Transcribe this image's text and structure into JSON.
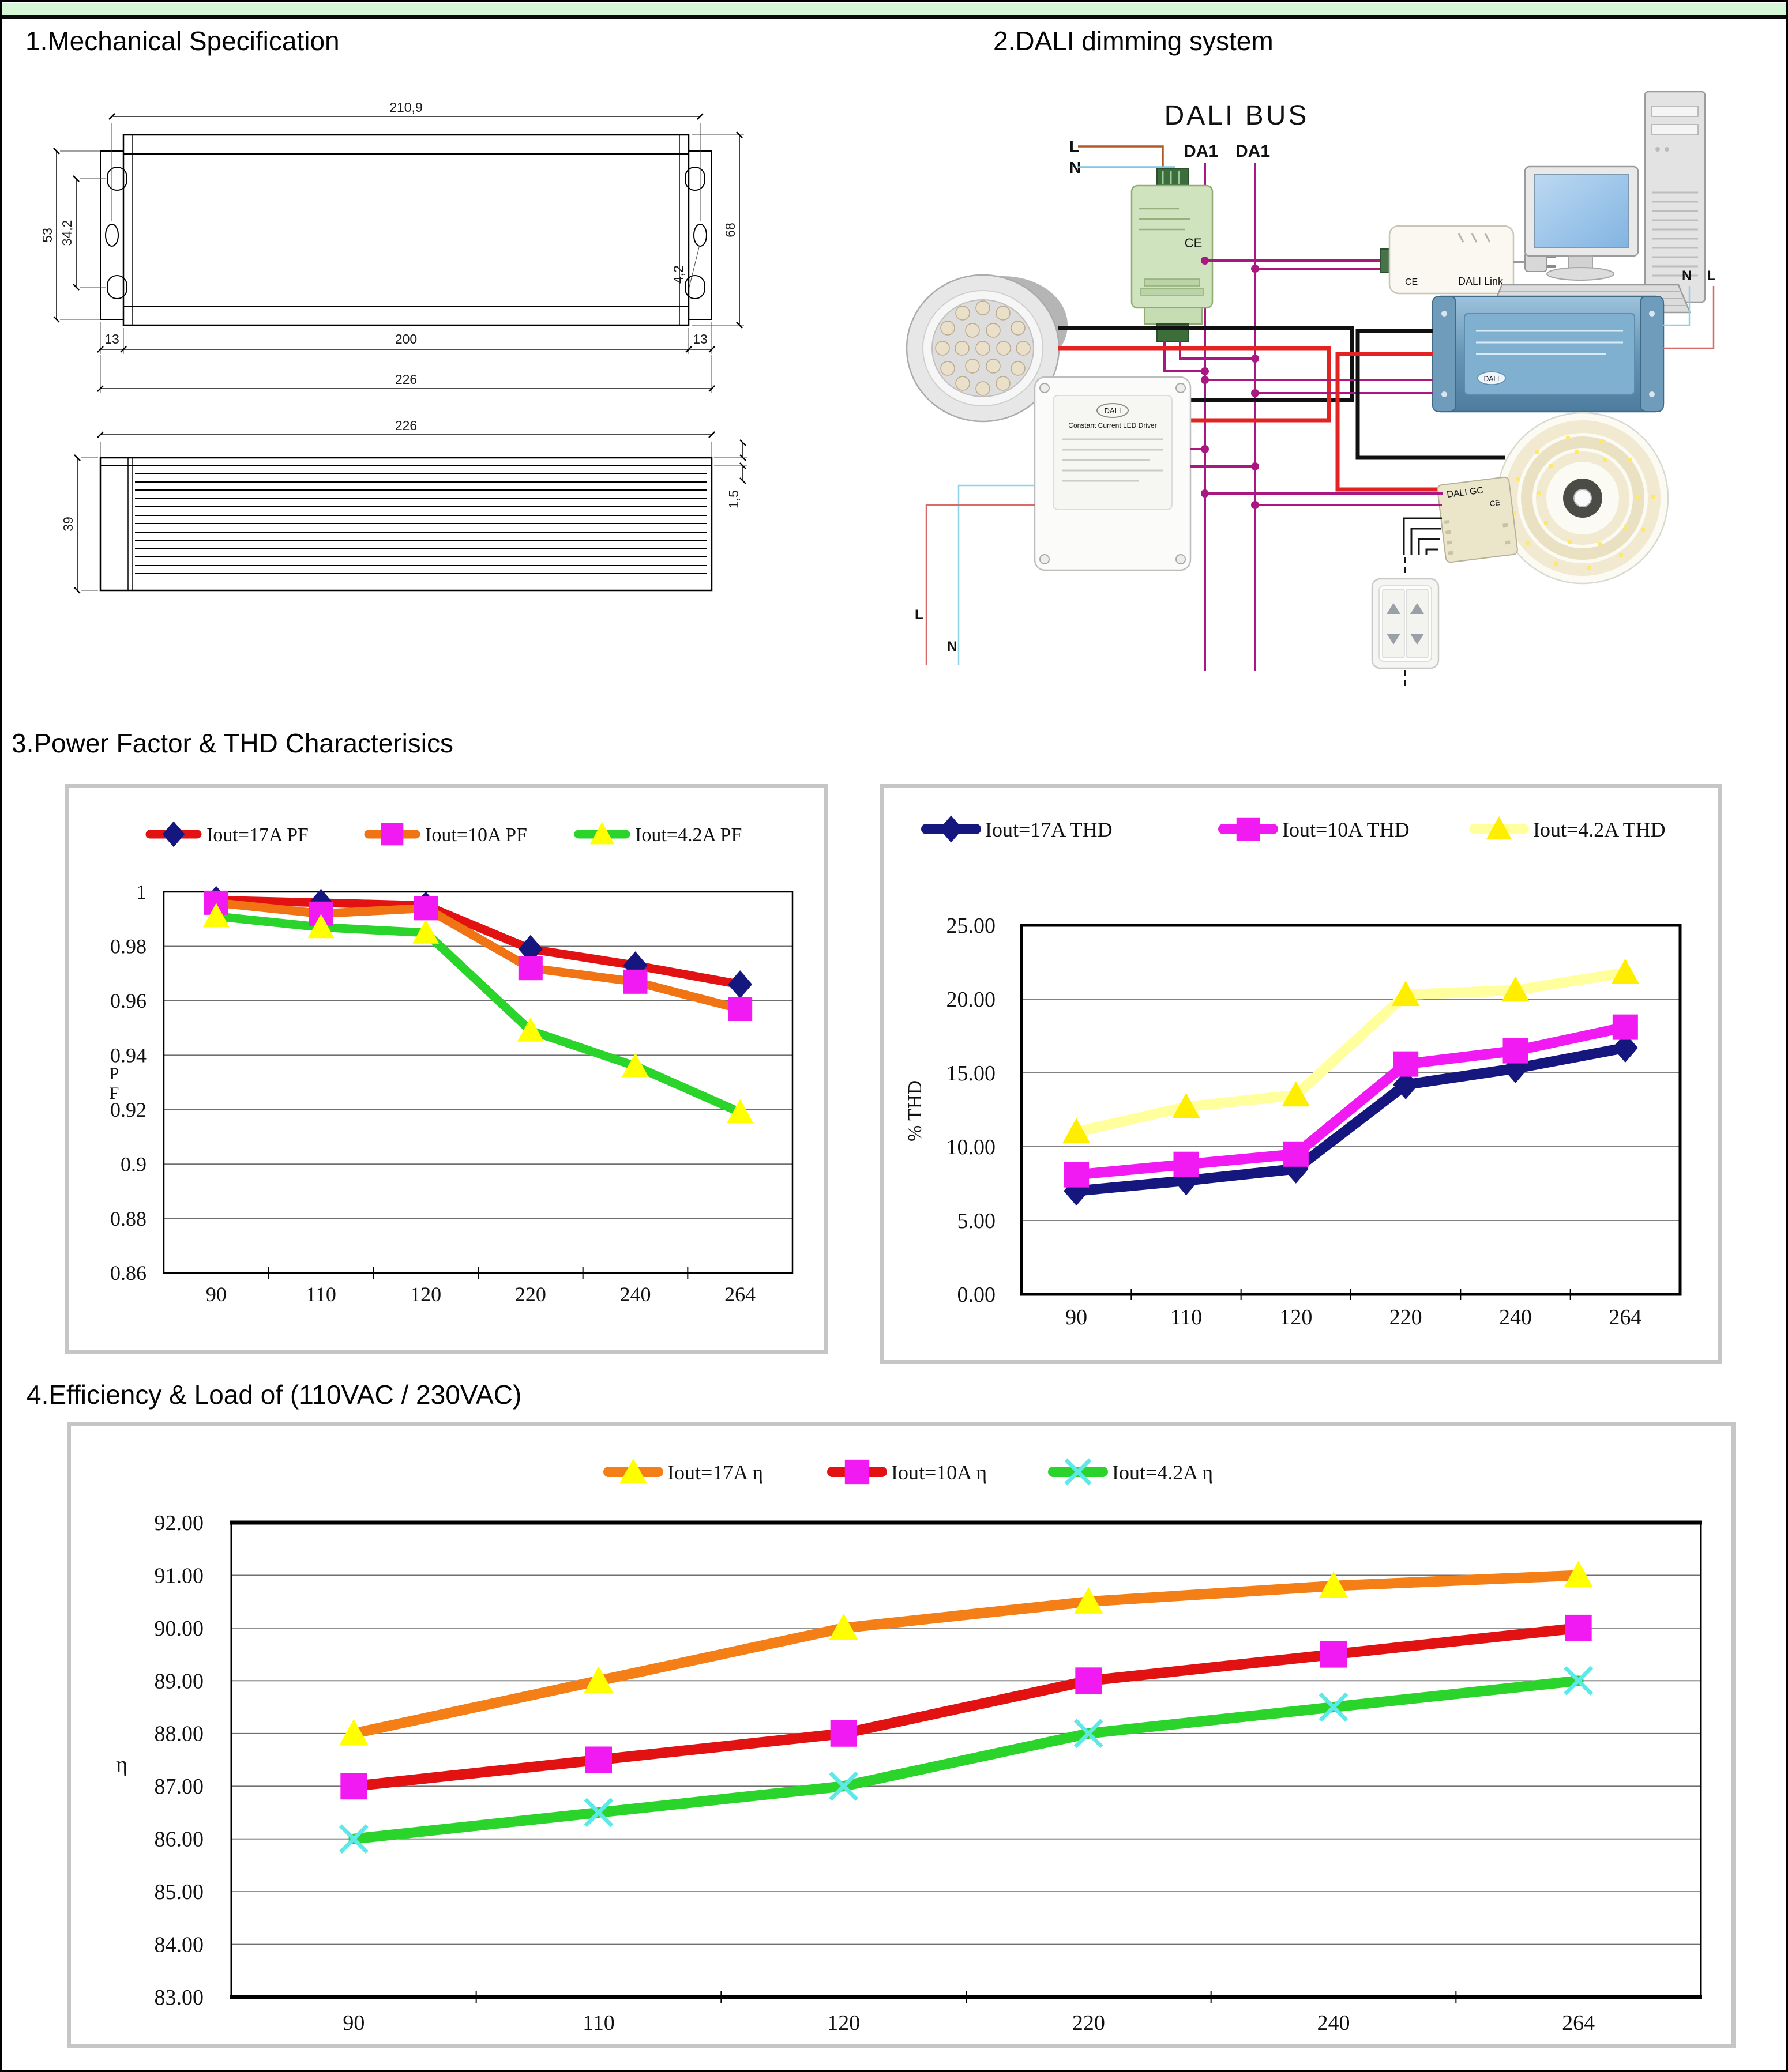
{
  "page": {
    "sections": {
      "s1": "1.Mechanical Specification",
      "s2": "2.DALI dimming system",
      "s3": "3.Power Factor & THD Characterisics",
      "s4": "4.Efficiency & Load of (110VAC / 230VAC)"
    }
  },
  "mechanical": {
    "top_view": {
      "dim_mount_width": "210,9",
      "dim_body_width": "200",
      "dim_flange_left": "13",
      "dim_flange_right": "13",
      "dim_total_width": "226",
      "dim_bracket_height": "53",
      "dim_slot_spacing": "34,2",
      "dim_body_height": "68",
      "dim_hole_dia": "4,2"
    },
    "side_view": {
      "dim_total_width": "226",
      "dim_height": "39",
      "dim_lip": "1,5"
    }
  },
  "dali_diagram": {
    "bus_label": "DALI BUS",
    "da1_left": "DA1",
    "da1_right": "DA1",
    "mains_l": "L",
    "mains_n": "N",
    "right_n": "N",
    "right_l": "L",
    "left_l": "L",
    "left_n": "N",
    "psu_ce": "CE",
    "link_ce": "CE",
    "link_label": "DALI Link",
    "white_driver_logo": "DALI",
    "white_driver_title": "Constant Current LED Driver",
    "blue_driver_logo": "DALI",
    "gc_label": "DALI GC",
    "gc_ce": "CE"
  },
  "chart_data": [
    {
      "id": "pf",
      "type": "line",
      "title": "",
      "categories": [
        "90",
        "110",
        "120",
        "220",
        "240",
        "264"
      ],
      "xlabel": "",
      "ylabel": "PF",
      "ylim": [
        0.86,
        1.0
      ],
      "grid": true,
      "legend_position": "top",
      "ytick_labels": [
        "0.86",
        "0.88",
        "0.9",
        "0.92",
        "0.94",
        "0.96",
        "0.98",
        "1"
      ],
      "series": [
        {
          "name": "Iout=17A PF",
          "line_color": "#e31212",
          "marker": "diamond",
          "marker_color": "#16167f",
          "values": [
            0.997,
            0.996,
            0.995,
            0.979,
            0.973,
            0.966
          ]
        },
        {
          "name": "Iout=10A PF",
          "line_color": "#f07414",
          "marker": "square",
          "marker_color": "#f21af2",
          "values": [
            0.996,
            0.992,
            0.994,
            0.972,
            0.967,
            0.957
          ]
        },
        {
          "name": "Iout=4.2A PF",
          "line_color": "#2bd42b",
          "marker": "triangle",
          "marker_color": "#ffff00",
          "values": [
            0.991,
            0.987,
            0.985,
            0.949,
            0.936,
            0.919
          ]
        }
      ]
    },
    {
      "id": "thd",
      "type": "line",
      "title": "",
      "categories": [
        "90",
        "110",
        "120",
        "220",
        "240",
        "264"
      ],
      "xlabel": "",
      "ylabel": "% THD",
      "ylim": [
        0,
        25
      ],
      "grid": true,
      "legend_position": "top",
      "ytick_labels": [
        "0.00",
        "5.00",
        "10.00",
        "15.00",
        "20.00",
        "25.00"
      ],
      "series": [
        {
          "name": "Iout=17A THD",
          "line_color": "#16167f",
          "marker": "diamond",
          "marker_color": "#16167f",
          "values": [
            7.0,
            7.7,
            8.5,
            14.2,
            15.3,
            16.7
          ]
        },
        {
          "name": "Iout=10A THD",
          "line_color": "#f21af2",
          "marker": "square",
          "marker_color": "#f21af2",
          "values": [
            8.1,
            8.8,
            9.5,
            15.6,
            16.5,
            18.1
          ]
        },
        {
          "name": "Iout=4.2A THD",
          "line_color": "#ffff9e",
          "marker": "triangle",
          "marker_color": "#ffee00",
          "values": [
            11.0,
            12.7,
            13.5,
            20.3,
            20.6,
            21.8
          ]
        }
      ]
    },
    {
      "id": "eff",
      "type": "line",
      "title": "",
      "categories": [
        "90",
        "110",
        "120",
        "220",
        "240",
        "264"
      ],
      "xlabel": "",
      "ylabel": "η",
      "ylim": [
        83,
        92
      ],
      "grid": true,
      "legend_position": "top",
      "ytick_labels": [
        "83.00",
        "84.00",
        "85.00",
        "86.00",
        "87.00",
        "88.00",
        "89.00",
        "90.00",
        "91.00",
        "92.00"
      ],
      "series": [
        {
          "name": "Iout=17A  η",
          "line_color": "#f57f17",
          "marker": "triangle",
          "marker_color": "#ffff00",
          "values": [
            88.0,
            89.0,
            90.0,
            90.5,
            90.8,
            91.0
          ]
        },
        {
          "name": "Iout=10A  η",
          "line_color": "#e31212",
          "marker": "square",
          "marker_color": "#f21af2",
          "values": [
            87.0,
            87.5,
            88.0,
            89.0,
            89.5,
            90.0
          ]
        },
        {
          "name": "Iout=4.2A  η",
          "line_color": "#2bd42b",
          "marker": "x",
          "marker_color": "#5fe8e8",
          "values": [
            86.0,
            86.5,
            87.0,
            88.0,
            88.5,
            89.0
          ]
        }
      ]
    }
  ]
}
